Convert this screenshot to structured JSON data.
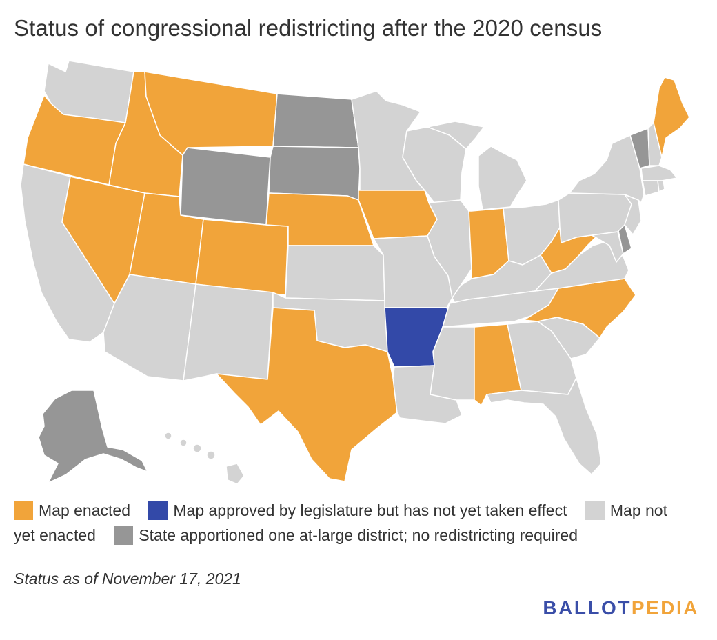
{
  "title": "Status of congressional redistricting after the 2020 census",
  "colors": {
    "enacted": "#f1a43a",
    "approved": "#3349a8",
    "not_enacted": "#d3d3d3",
    "at_large": "#969696"
  },
  "legend": {
    "enacted": "Map enacted",
    "approved": "Map approved by legislature but has not yet taken effect",
    "not_enacted_1": "Map not",
    "not_enacted_2": "yet enacted",
    "at_large": "State apportioned one at-large district; no redistricting required"
  },
  "status_note": "Status as of November 17, 2021",
  "logo": {
    "part1": "BALLOT",
    "part2": "PEDIA"
  },
  "states": {
    "enacted": [
      "Oregon",
      "Idaho",
      "Montana",
      "Nevada",
      "Utah",
      "Colorado",
      "Nebraska",
      "Iowa",
      "Texas",
      "Indiana",
      "West Virginia",
      "North Carolina",
      "Alabama",
      "Maine"
    ],
    "approved": [
      "Arkansas"
    ],
    "at_large": [
      "North Dakota",
      "South Dakota",
      "Wyoming",
      "Vermont",
      "Delaware",
      "Alaska"
    ],
    "not_enacted": [
      "Washington",
      "California",
      "Arizona",
      "New Mexico",
      "Kansas",
      "Oklahoma",
      "Minnesota",
      "Missouri",
      "Louisiana",
      "Wisconsin",
      "Illinois",
      "Michigan",
      "Mississippi",
      "Kentucky",
      "Tennessee",
      "Ohio",
      "Pennsylvania",
      "New York",
      "Georgia",
      "Florida",
      "South Carolina",
      "Virginia",
      "Maryland",
      "New Jersey",
      "New Hampshire",
      "Massachusetts",
      "Connecticut",
      "Rhode Island",
      "Hawaii"
    ]
  }
}
